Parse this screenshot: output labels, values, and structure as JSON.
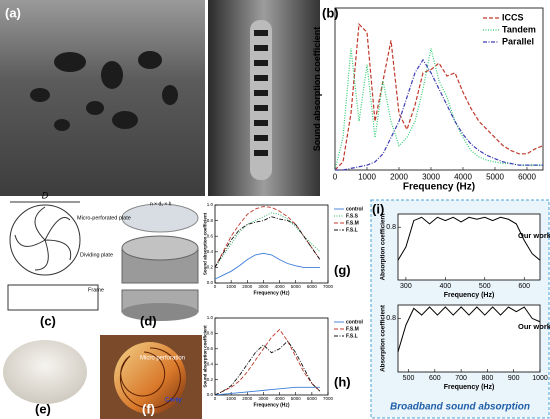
{
  "figure": {
    "panel_labels": [
      "(a)",
      "(c)",
      "(d)",
      "(e)",
      "(f)",
      "(i)"
    ],
    "diagram_texts": {
      "diameter": "D",
      "micro_plate": "Micro-perforated plate",
      "dividing_plate": "Dividing plate",
      "frame": "Frame",
      "holes": "n × d₁ × h",
      "micro_perforation": "Micro perforation",
      "cavity": "Cavity",
      "broadband": "Broadband sound absorption"
    }
  },
  "chart_data": [
    {
      "type": "line",
      "label": "(b)",
      "xlabel": "Frequency (Hz)",
      "ylabel": "Sound absorption coefficient",
      "legend": "upper right",
      "x": [
        0,
        250,
        500,
        750,
        1000,
        1250,
        1500,
        1750,
        2000,
        2250,
        2500,
        2750,
        3000,
        3250,
        3500,
        3750,
        4000,
        4250,
        4500,
        4750,
        5000,
        5250,
        5500,
        5750,
        6000,
        6250,
        6500
      ],
      "xlim": [
        0,
        6500
      ],
      "ylim": [
        0,
        1
      ],
      "xticks": [
        0,
        1000,
        2000,
        3000,
        4000,
        5000,
        6000
      ],
      "series": [
        {
          "name": "ICCS",
          "color": "#c0392b",
          "dash": "dashed",
          "values": [
            0,
            0.05,
            0.35,
            0.9,
            0.85,
            0.3,
            0.55,
            0.8,
            0.35,
            0.25,
            0.4,
            0.6,
            0.62,
            0.66,
            0.58,
            0.6,
            0.48,
            0.38,
            0.3,
            0.25,
            0.2,
            0.15,
            0.12,
            0.1,
            0.1,
            0.13,
            0.15
          ]
        },
        {
          "name": "Tandem",
          "color": "#2ecc71",
          "dash": "dotted",
          "values": [
            0,
            0.2,
            0.75,
            0.3,
            0.65,
            0.2,
            0.55,
            0.3,
            0.15,
            0.2,
            0.3,
            0.5,
            0.75,
            0.55,
            0.45,
            0.3,
            0.2,
            0.12,
            0.08,
            0.06,
            0.05,
            0.04,
            0.04,
            0.03,
            0.03,
            0.03,
            0.03
          ]
        },
        {
          "name": "Parallel",
          "color": "#3b3bb3",
          "dash": "dashdot",
          "values": [
            0,
            0,
            0.01,
            0.02,
            0.03,
            0.05,
            0.1,
            0.2,
            0.3,
            0.45,
            0.6,
            0.68,
            0.6,
            0.5,
            0.4,
            0.3,
            0.22,
            0.16,
            0.12,
            0.09,
            0.07,
            0.05,
            0.04,
            0.03,
            0.03,
            0.03,
            0.03
          ]
        }
      ]
    },
    {
      "type": "line",
      "label": "(g)",
      "xlabel": "Frequency (Hz)",
      "ylabel": "Sound absorption coefficient",
      "legend": "outside right",
      "x": [
        0,
        500,
        1000,
        1500,
        2000,
        2500,
        3000,
        3500,
        4000,
        4500,
        5000,
        5500,
        6000,
        6500
      ],
      "xlim": [
        0,
        7000
      ],
      "ylim": [
        0,
        1
      ],
      "xticks": [
        0,
        1000,
        2000,
        3000,
        4000,
        5000,
        6000,
        7000
      ],
      "yticks": [
        {
          "value": 0,
          "label": "0.0"
        },
        {
          "value": 0.2,
          "label": "0.2"
        },
        {
          "value": 0.4,
          "label": "0.4"
        },
        {
          "value": 0.6,
          "label": "0.6"
        },
        {
          "value": 0.8,
          "label": "0.8"
        },
        {
          "value": 1,
          "label": "1.0"
        }
      ],
      "series": [
        {
          "name": "control",
          "color": "#3b7dd8",
          "dash": "solid",
          "values": [
            0.05,
            0.1,
            0.15,
            0.22,
            0.3,
            0.36,
            0.38,
            0.36,
            0.3,
            0.25,
            0.22,
            0.2,
            0.2,
            0.2
          ]
        },
        {
          "name": "F.S.S",
          "color": "#27ae60",
          "dash": "dotted",
          "values": [
            0.2,
            0.35,
            0.5,
            0.65,
            0.75,
            0.8,
            0.85,
            0.9,
            0.88,
            0.82,
            0.72,
            0.6,
            0.5,
            0.4
          ]
        },
        {
          "name": "F.S.M",
          "color": "#c0392b",
          "dash": "dashed",
          "values": [
            0.2,
            0.4,
            0.6,
            0.75,
            0.88,
            0.95,
            0.98,
            0.97,
            0.92,
            0.85,
            0.75,
            0.6,
            0.45,
            0.3
          ]
        },
        {
          "name": "F.S.L",
          "color": "#111111",
          "dash": "dashdot",
          "values": [
            0.2,
            0.38,
            0.55,
            0.68,
            0.75,
            0.78,
            0.8,
            0.85,
            0.82,
            0.8,
            0.75,
            0.6,
            0.45,
            0.3
          ]
        }
      ]
    },
    {
      "type": "line",
      "label": "(h)",
      "xlabel": "Frequency (Hz)",
      "ylabel": "Sound absorption coefficient",
      "legend": "outside right",
      "x": [
        0,
        500,
        1000,
        1500,
        2000,
        2500,
        3000,
        3500,
        4000,
        4500,
        5000,
        5500,
        6000,
        6500
      ],
      "xlim": [
        0,
        7000
      ],
      "ylim": [
        0,
        1
      ],
      "xticks": [
        0,
        1000,
        2000,
        3000,
        4000,
        5000,
        6000,
        7000
      ],
      "yticks": [
        {
          "value": 0,
          "label": "0.0"
        },
        {
          "value": 0.2,
          "label": "0.2"
        },
        {
          "value": 0.4,
          "label": "0.4"
        },
        {
          "value": 0.6,
          "label": "0.6"
        },
        {
          "value": 0.8,
          "label": "0.8"
        },
        {
          "value": 1,
          "label": "1.0"
        }
      ],
      "series": [
        {
          "name": "control",
          "color": "#3b7dd8",
          "dash": "solid",
          "values": [
            0,
            0.01,
            0.02,
            0.03,
            0.04,
            0.05,
            0.06,
            0.07,
            0.08,
            0.09,
            0.1,
            0.1,
            0.1,
            0.1
          ]
        },
        {
          "name": "F.S.M",
          "color": "#c0392b",
          "dash": "dashed",
          "values": [
            0,
            0.05,
            0.1,
            0.18,
            0.3,
            0.45,
            0.6,
            0.75,
            0.85,
            0.7,
            0.5,
            0.3,
            0.15,
            0.05
          ]
        },
        {
          "name": "F.S.L",
          "color": "#111111",
          "dash": "dashdot",
          "values": [
            0,
            0.05,
            0.12,
            0.25,
            0.4,
            0.55,
            0.65,
            0.55,
            0.6,
            0.7,
            0.55,
            0.35,
            0.15,
            0.05
          ]
        }
      ]
    },
    {
      "type": "line",
      "xlabel": "Frequency (Hz)",
      "ylabel": "Absorption coefficient",
      "legend": "inline",
      "x": [
        280,
        300,
        320,
        340,
        360,
        380,
        400,
        420,
        440,
        460,
        480,
        500,
        520,
        540,
        560,
        580,
        600,
        620,
        640
      ],
      "xlim": [
        280,
        640
      ],
      "ylim": [
        0,
        1
      ],
      "xticks": [
        300,
        400,
        500,
        600
      ],
      "yticks": [
        0.8
      ],
      "series": [
        {
          "name": "Our work",
          "color": "#000000",
          "dash": "solid",
          "values": [
            0.3,
            0.5,
            0.9,
            0.95,
            0.85,
            0.95,
            0.9,
            0.95,
            0.88,
            0.95,
            0.92,
            0.95,
            0.9,
            0.95,
            0.92,
            0.85,
            0.6,
            0.4,
            0.3
          ]
        }
      ]
    },
    {
      "type": "line",
      "xlabel": "Frequency (Hz)",
      "ylabel": "Absorption coefficient",
      "legend": "inline",
      "x": [
        460,
        490,
        520,
        550,
        580,
        610,
        640,
        670,
        700,
        730,
        760,
        790,
        820,
        850,
        880,
        910,
        940,
        970,
        1000
      ],
      "xlim": [
        460,
        1000
      ],
      "ylim": [
        0,
        1
      ],
      "xticks": [
        500,
        600,
        700,
        800,
        900,
        1000
      ],
      "yticks": [
        0.8
      ],
      "series": [
        {
          "name": "Our work",
          "color": "#000000",
          "dash": "solid",
          "values": [
            0.3,
            0.7,
            0.95,
            0.85,
            0.97,
            0.85,
            0.97,
            0.85,
            0.97,
            0.85,
            0.97,
            0.85,
            0.97,
            0.85,
            0.97,
            0.9,
            0.97,
            0.8,
            0.75
          ]
        }
      ]
    }
  ]
}
